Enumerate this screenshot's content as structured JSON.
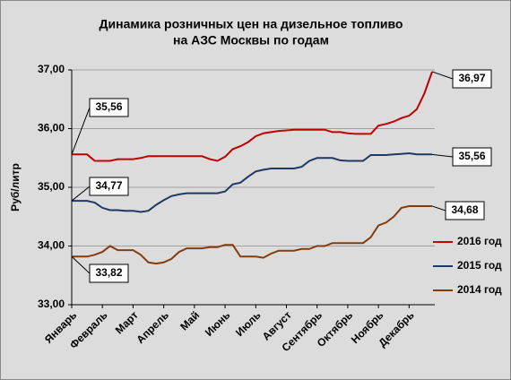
{
  "chart_data": {
    "type": "line",
    "title": [
      "Динамика розничных цен на дизельное топливо",
      "на АЗС Москвы по годам"
    ],
    "y_label": "Руб/литр",
    "categories": [
      "Январь",
      null,
      null,
      null,
      "Февраль",
      null,
      null,
      null,
      "Март",
      null,
      null,
      null,
      "Апрель",
      null,
      null,
      null,
      "Май",
      null,
      null,
      null,
      "Июнь",
      null,
      null,
      null,
      "Июль",
      null,
      null,
      null,
      "Август",
      null,
      null,
      null,
      "Сентябрь",
      null,
      null,
      null,
      "Октябрь",
      null,
      null,
      null,
      "Ноябрь",
      null,
      null,
      null,
      "Декабрь",
      null,
      null,
      null
    ],
    "ylim": [
      33,
      37
    ],
    "yticks": [
      {
        "value": 33,
        "label": "33,00"
      },
      {
        "value": 34,
        "label": "34,00"
      },
      {
        "value": 35,
        "label": "35,00"
      },
      {
        "value": 36,
        "label": "36,00"
      },
      {
        "value": 37,
        "label": "37,00"
      }
    ],
    "grid": true,
    "legend": "right",
    "series": [
      {
        "name": "2016 год",
        "color": "#c00000",
        "values": [
          35.56,
          35.56,
          35.56,
          35.45,
          35.45,
          35.45,
          35.48,
          35.48,
          35.48,
          35.5,
          35.53,
          35.53,
          35.53,
          35.53,
          35.53,
          35.53,
          35.53,
          35.53,
          35.48,
          35.45,
          35.52,
          35.65,
          35.7,
          35.77,
          35.87,
          35.92,
          35.94,
          35.96,
          35.97,
          35.98,
          35.98,
          35.98,
          35.98,
          35.98,
          35.94,
          35.94,
          35.92,
          35.91,
          35.91,
          35.91,
          36.05,
          36.08,
          36.12,
          36.18,
          36.22,
          36.33,
          36.6,
          36.97
        ],
        "value_labels": [
          "35,56",
          null,
          null,
          null,
          null,
          null,
          null,
          null,
          null,
          null,
          null,
          null,
          null,
          null,
          null,
          null,
          null,
          null,
          null,
          null,
          null,
          null,
          null,
          null,
          null,
          null,
          null,
          null,
          null,
          null,
          null,
          null,
          null,
          null,
          null,
          null,
          null,
          null,
          null,
          null,
          null,
          null,
          null,
          null,
          null,
          null,
          null,
          "36,97"
        ]
      },
      {
        "name": "2015 год",
        "color": "#1f3864",
        "values": [
          34.77,
          34.77,
          34.77,
          34.74,
          34.65,
          34.61,
          34.61,
          34.6,
          34.6,
          34.58,
          34.6,
          34.7,
          34.78,
          34.85,
          34.88,
          34.9,
          34.9,
          34.9,
          34.9,
          34.9,
          34.93,
          35.05,
          35.08,
          35.18,
          35.27,
          35.3,
          35.32,
          35.32,
          35.32,
          35.32,
          35.35,
          35.45,
          35.5,
          35.5,
          35.5,
          35.46,
          35.45,
          35.45,
          35.45,
          35.55,
          35.55,
          35.55,
          35.56,
          35.57,
          35.58,
          35.56,
          35.56,
          35.56
        ],
        "value_labels": [
          "34,77",
          null,
          null,
          null,
          null,
          null,
          null,
          null,
          null,
          null,
          null,
          null,
          null,
          null,
          null,
          null,
          null,
          null,
          null,
          null,
          null,
          null,
          null,
          null,
          null,
          null,
          null,
          null,
          null,
          null,
          null,
          null,
          null,
          null,
          null,
          null,
          null,
          null,
          null,
          null,
          null,
          null,
          null,
          null,
          null,
          null,
          null,
          "35,56"
        ]
      },
      {
        "name": "2014 год",
        "color": "#843c0c",
        "values": [
          33.82,
          33.82,
          33.82,
          33.85,
          33.9,
          34.0,
          33.93,
          33.93,
          33.93,
          33.85,
          33.72,
          33.7,
          33.72,
          33.78,
          33.9,
          33.96,
          33.96,
          33.96,
          33.98,
          33.98,
          34.02,
          34.02,
          33.82,
          33.82,
          33.82,
          33.8,
          33.87,
          33.92,
          33.92,
          33.92,
          33.95,
          33.95,
          34.0,
          34.0,
          34.05,
          34.05,
          34.05,
          34.05,
          34.05,
          34.15,
          34.35,
          34.4,
          34.5,
          34.65,
          34.68,
          34.68,
          34.68,
          34.68
        ],
        "value_labels": [
          "33,82",
          null,
          null,
          null,
          null,
          null,
          null,
          null,
          null,
          null,
          null,
          null,
          null,
          null,
          null,
          null,
          null,
          null,
          null,
          null,
          null,
          null,
          null,
          null,
          null,
          null,
          null,
          null,
          null,
          null,
          null,
          null,
          null,
          null,
          null,
          null,
          null,
          null,
          null,
          null,
          null,
          null,
          null,
          null,
          null,
          null,
          null,
          "34,68"
        ]
      }
    ]
  }
}
